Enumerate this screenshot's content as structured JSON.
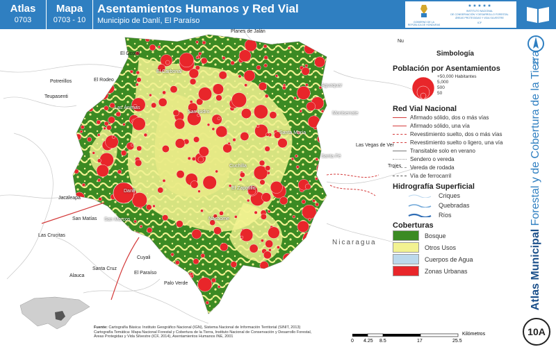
{
  "header": {
    "atlas_label": "Atlas",
    "atlas_code": "0703",
    "mapa_label": "Mapa",
    "mapa_code": "0703 - 10",
    "title": "Asentamientos Humanos y Red Vial",
    "subtitle": "Municipio de Danlí, El Paraíso",
    "logo_left_text": "GOBIERNO DE LA REPÚBLICA DE HONDURAS",
    "logo_right_text": "INSTITUTO NACIONAL DE CONSERVACIÓN Y DESARROLLO FORESTAL, ÁREAS PROTEGIDAS Y VIDA SILVESTRE ICF"
  },
  "sidebar": {
    "vertical_title_bold": "Atlas Municipal",
    "vertical_title_rest": " Forestal y de Cobertura de la Tierra",
    "north_label": "N",
    "badge": "10A"
  },
  "legend": {
    "title": "Simbología",
    "pop_heading": "Población por Asentamientos",
    "pop_classes": [
      "+50,000 Habitantes",
      "5,000",
      "500",
      "50"
    ],
    "roads_heading": "Red Vial Nacional",
    "roads": [
      {
        "label": "Afirmado sólido, dos o más vías",
        "color": "#d43a3a",
        "style": "solid"
      },
      {
        "label": "Afirmado sólido, una vía",
        "color": "#d43a3a",
        "style": "solid"
      },
      {
        "label": "Revestimiento suelto, dos o más vías",
        "color": "#d43a3a",
        "style": "dashed"
      },
      {
        "label": "Revestimiento suelto o ligero, una vía",
        "color": "#d43a3a",
        "style": "dashed"
      },
      {
        "label": "Transitable solo en verano",
        "color": "#777777",
        "style": "solid"
      },
      {
        "label": "Sendero o vereda",
        "color": "#999999",
        "style": "dotted"
      },
      {
        "label": "Vereda de rodada",
        "color": "#999999",
        "style": "dashed"
      },
      {
        "label": "Vía de ferrocarril",
        "color": "#555555",
        "style": "dashed"
      }
    ],
    "hydro_heading": "Hidrografía Superficial",
    "hydro": [
      {
        "label": "Criques",
        "color": "#b9d6ee"
      },
      {
        "label": "Quebradas",
        "color": "#6ea6d8"
      },
      {
        "label": "Ríos",
        "color": "#2f6db5"
      }
    ],
    "cover_heading": "Coberturas",
    "covers": [
      {
        "label": "Bosque",
        "color": "#3b8a23"
      },
      {
        "label": "Otros Usos",
        "color": "#f2f291"
      },
      {
        "label": "Cuerpos de Agua",
        "color": "#bcd9ec"
      },
      {
        "label": "Zonas Urbanas",
        "color": "#e8262a"
      }
    ]
  },
  "map": {
    "country_label": "Nicaragua",
    "outside_places": [
      {
        "name": "Planes de Jalán"
      },
      {
        "name": "El Ocotal"
      },
      {
        "name": "El Rodeo"
      },
      {
        "name": "Potrerillos"
      },
      {
        "name": "Teupasenti"
      },
      {
        "name": "Jacaleapa"
      },
      {
        "name": "San Matías"
      },
      {
        "name": "Las Crucitas"
      },
      {
        "name": "Cuyali"
      },
      {
        "name": "Santa Cruz"
      },
      {
        "name": "Alauca"
      },
      {
        "name": "El Paraíso"
      },
      {
        "name": "Palo Verde"
      },
      {
        "name": "Las Vegas de Ver"
      },
      {
        "name": "Trojes"
      },
      {
        "name": "Nu"
      }
    ],
    "inside_places": [
      {
        "name": "El Carbonal"
      },
      {
        "name": "Aguaquar"
      },
      {
        "name": "Santa María"
      },
      {
        "name": "Santa Fé"
      },
      {
        "name": "Cuchilla"
      },
      {
        "name": "El Zapotillo"
      },
      {
        "name": "Danlí"
      },
      {
        "name": "San Marcos"
      },
      {
        "name": "Nacaome"
      },
      {
        "name": "Montserrate"
      },
      {
        "name": "San Isidro"
      },
      {
        "name": "Las Ánimas"
      }
    ]
  },
  "footer": {
    "fuente_label": "Fuente:",
    "fuente_lines": [
      "Cartografía Básica: Instituto Geográfico Nacional (IGN), Sistema Nacional de Información Territorial (SINIT, 2013)",
      "Cartografía Temática: Mapa Nacional Forestal y Cobertura de la Tierra, Instituto Nacional de Conservación y Desarrollo Forestal,",
      "Áreas Protegidas y Vida Silvestre (ICF, 2014), Asentamientos Humanos INE, 2001"
    ],
    "scale_ticks": [
      "0",
      "4.25",
      "8.5",
      "17",
      "25.5"
    ],
    "scale_unit": "Kilómetros"
  }
}
